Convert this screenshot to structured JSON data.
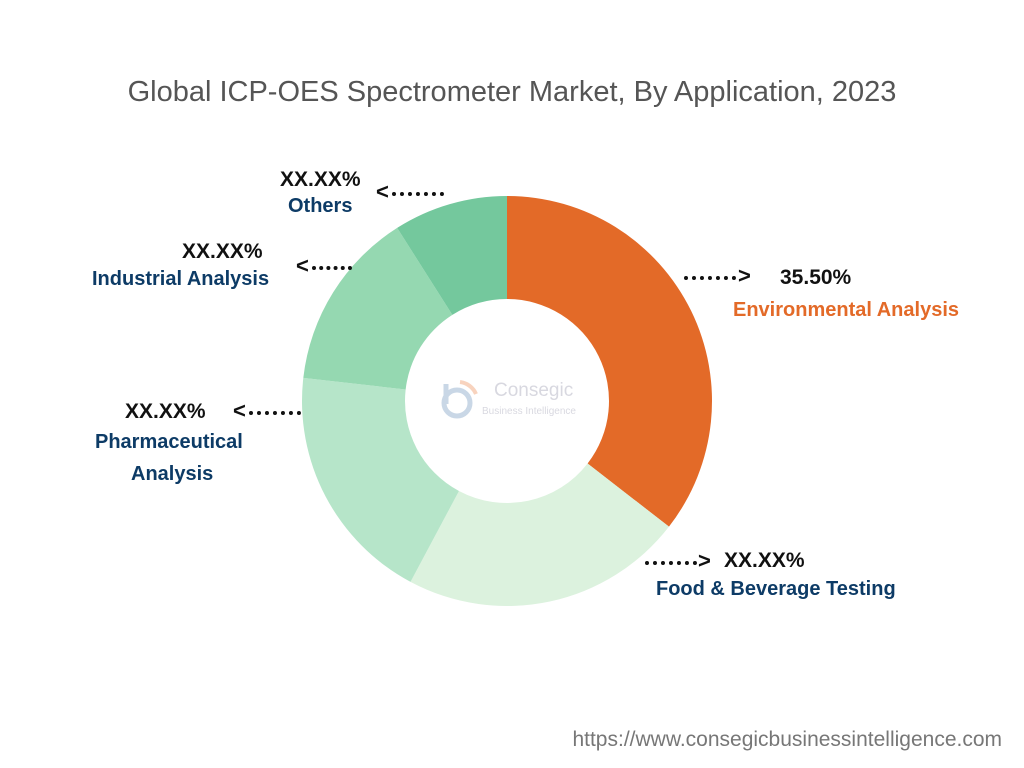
{
  "chart_data": {
    "type": "pie",
    "donut": true,
    "title": "Global ICP-OES Spectrometer Market, By Application, 2023",
    "slices": [
      {
        "name": "Environmental Analysis",
        "value": 35.5,
        "label": "35.50%",
        "color": "#e36a28"
      },
      {
        "name": "Food & Beverage Testing",
        "value": 22.3,
        "label": "XX.XX%",
        "color": "#dcf2de"
      },
      {
        "name": "Pharmaceutical Analysis",
        "value": 19.0,
        "label": "XX.XX%",
        "color": "#b6e5c9"
      },
      {
        "name": "Industrial Analysis",
        "value": 14.2,
        "label": "XX.XX%",
        "color": "#95d8b1"
      },
      {
        "name": "Others",
        "value": 9.0,
        "label": "XX.XX%",
        "color": "#74c89d"
      }
    ]
  },
  "labels": {
    "pharma_line1": "Pharmaceutical",
    "pharma_line2": "Analysis"
  },
  "logo": {
    "name": "Consegic",
    "sub": "Business Intelligence"
  },
  "footer": {
    "url": "https://www.consegicbusinessintelligence.com"
  }
}
